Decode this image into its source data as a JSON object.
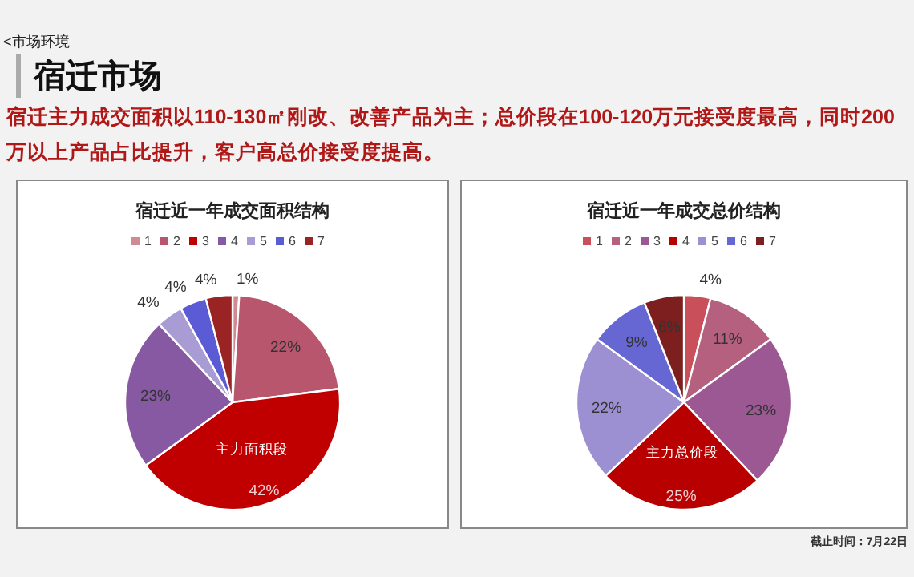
{
  "chart_data": [
    {
      "type": "pie",
      "title": "宿迁近一年成交面积结构",
      "legend": "top",
      "categories": [
        "1",
        "2",
        "3",
        "4",
        "5",
        "6",
        "7"
      ],
      "values": [
        1,
        22,
        42,
        23,
        4,
        4,
        4
      ],
      "value_labels": [
        "1%",
        "22%",
        "42%",
        "23%",
        "4%",
        "4%",
        "4%"
      ],
      "colors": [
        "#cf8a92",
        "#b8566e",
        "#c00000",
        "#8759a3",
        "#a99bd3",
        "#5b5bd6",
        "#9a2424"
      ],
      "annotations": [
        "<市场环境",
        "宿迁市场",
        "宿迁主力成交面积以110-130㎡刚改、改善产品为主；总价段在100-120万元接受度最高，同时200万以上产品占比提升，客户高总价接受度提高。",
        {
          "text": "主力面积段",
          "x": "3"
        }
      ]
    },
    {
      "type": "pie",
      "title": "宿迁近一年成交总价结构",
      "legend": "top",
      "categories": [
        "1",
        "2",
        "3",
        "4",
        "5",
        "6",
        "7"
      ],
      "values": [
        4,
        11,
        23,
        25,
        22,
        9,
        6
      ],
      "value_labels": [
        "4%",
        "11%",
        "23%",
        "25%",
        "22%",
        "9%",
        "6%"
      ],
      "colors": [
        "#c9505a",
        "#b5607e",
        "#9c5892",
        "#b80000",
        "#9c90d2",
        "#6767d4",
        "#7d1f1f"
      ],
      "annotations": [
        "截止时间：7月22日",
        {
          "text": "主力总价段",
          "x": "4"
        }
      ]
    }
  ]
}
